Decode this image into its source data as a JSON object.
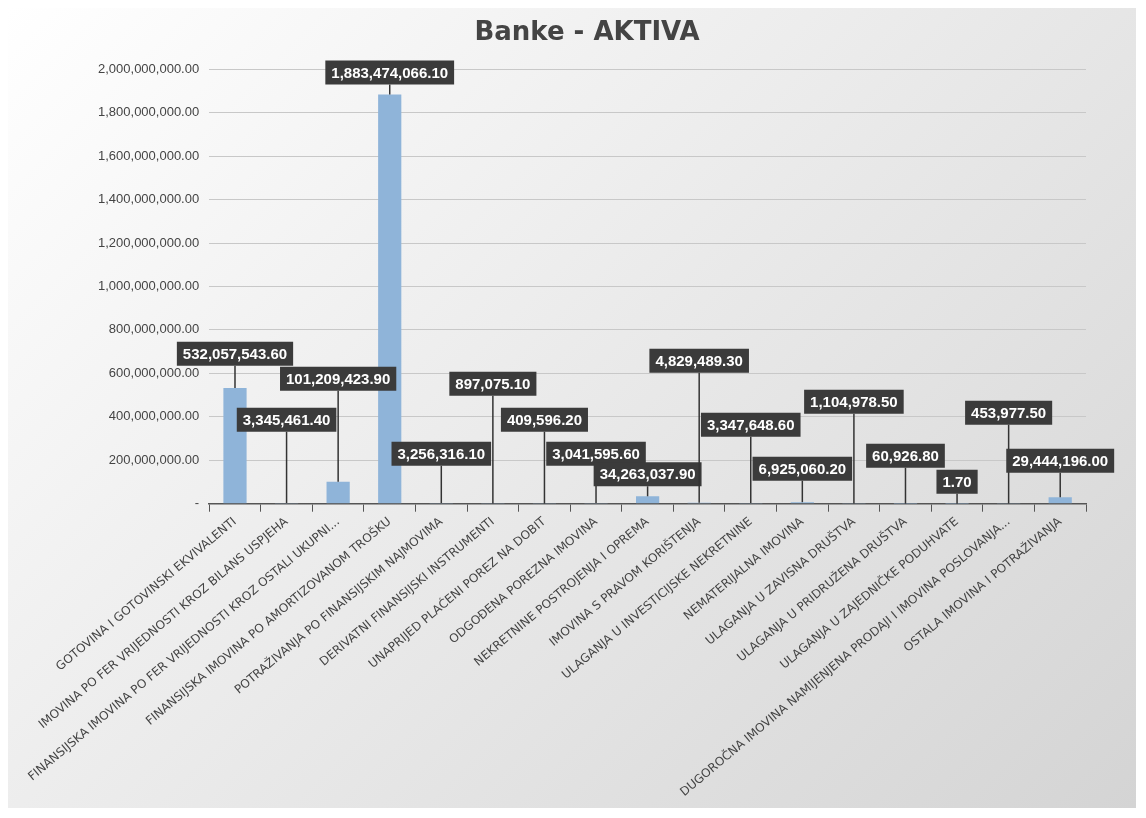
{
  "chart_data": {
    "type": "bar",
    "title": "Banke - AKTIVA",
    "categories": [
      "GOTOVINA I GOTOVINSKI EKVIVALENTI",
      "IMOVINA PO FER VRIJEDNOSTI KROZ BILANS USPJEHA",
      "FINANSIJSKA IMOVINA PO FER VRIJEDNOSTI KROZ OSTALI UKUPNI...",
      "FINANSIJSKA IMOVINA PO AMORTIZOVANOM TROŠKU",
      "POTRAŽIVANJA PO FINANSIJSKIM NAJMOVIMA",
      "DERIVATNI FINANSIJSKI INSTRUMENTI",
      "UNAPRIJED PLAĆENI POREZ NA DOBIT",
      "ODGOĐENA POREZNA IMOVINA",
      "NEKRETNINE POSTROJENJA I OPREMA",
      "IMOVINA S PRAVOM KORIŠTENJA",
      "ULAGANJA U INVESTICIJSKE NEKRETNINE",
      "NEMATERIJALNA IMOVINA",
      "ULAGANJA U ZAVISNA DRUŠTVA",
      "ULAGANJA U PRIDRUŽENA DRUŠTVA",
      "ULAGANJA U ZAJEDNIČKE PODUHVATE",
      "DUGOROČNA IMOVINA NAMIJENJENA PRODAJI I IMOVINA POSLOVANJA...",
      "OSTALA IMOVINA I POTRAŽIVANJA"
    ],
    "values": [
      532057543.6,
      3345461.4,
      101209423.9,
      1883474066.1,
      3256316.1,
      897075.1,
      409596.2,
      3041595.6,
      34263037.9,
      4829489.3,
      3347648.6,
      6925060.2,
      1104978.5,
      60926.8,
      1.7,
      453977.5,
      29444196.0
    ],
    "value_labels": [
      "532,057,543.60",
      "3,345,461.40",
      "101,209,423.90",
      "1,883,474,066.10",
      "3,256,316.10",
      "897,075.10",
      "409,596.20",
      "3,041,595.60",
      "34,263,037.90",
      "4,829,489.30",
      "3,347,648.60",
      "6,925,060.20",
      "1,104,978.50",
      "60,926.80",
      "1.70",
      "453,977.50",
      "29,444,196.00"
    ],
    "color": "#8fb4d9",
    "ylim": [
      0,
      2000000000
    ],
    "yticks": [
      {
        "value": 0,
        "label": "-"
      },
      {
        "value": 200000000,
        "label": "200,000,000.00"
      },
      {
        "value": 400000000,
        "label": "400,000,000.00"
      },
      {
        "value": 600000000,
        "label": "600,000,000.00"
      },
      {
        "value": 800000000,
        "label": "800,000,000.00"
      },
      {
        "value": 1000000000,
        "label": "1,000,000,000.00"
      },
      {
        "value": 1200000000,
        "label": "1,200,000,000.00"
      },
      {
        "value": 1400000000,
        "label": "1,400,000,000.00"
      },
      {
        "value": 1600000000,
        "label": "1,600,000,000.00"
      },
      {
        "value": 1800000000,
        "label": "1,800,000,000.00"
      },
      {
        "value": 2000000000,
        "label": "2,000,000,000.00"
      }
    ],
    "grid": "y",
    "legend": false
  }
}
